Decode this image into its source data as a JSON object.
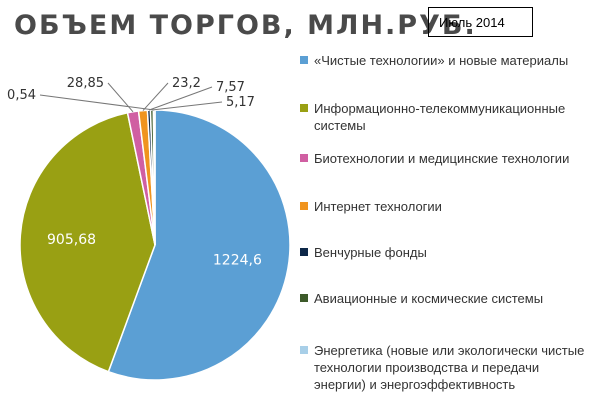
{
  "chart_data": {
    "type": "pie",
    "title": "ОБЪЕМ ТОРГОВ, МЛН.РУБ.",
    "date_label": "Июль 2014",
    "legend_position": "right",
    "slices": [
      {
        "label": "«Чистые технологии» и новые материалы",
        "value": 1224.6,
        "value_label": "1224,6",
        "color": "#5b9fd4"
      },
      {
        "label": "Информационно-телекоммуникационные системы",
        "value": 905.68,
        "value_label": "905,68",
        "color": "#99a013"
      },
      {
        "label": "Биотехнологии и медицинские технологии",
        "value": 28.85,
        "value_label": "28,85",
        "color": "#d05fa2"
      },
      {
        "label": "Интернет технологии",
        "value": 23.2,
        "value_label": "23,2",
        "color": "#f0941e"
      },
      {
        "label": "Венчурные фонды",
        "value": 7.57,
        "value_label": "7,57",
        "color": "#0d2748"
      },
      {
        "label": "Авиационные и космические системы",
        "value": 5.17,
        "value_label": "5,17",
        "color": "#3d5a2a"
      },
      {
        "label": "Энергетика (новые или экологически чистые технологии производства и передачи энергии) и энергоэффективность",
        "value": 0.54,
        "value_label": "0,54",
        "color": "#a8cfe8"
      }
    ]
  }
}
